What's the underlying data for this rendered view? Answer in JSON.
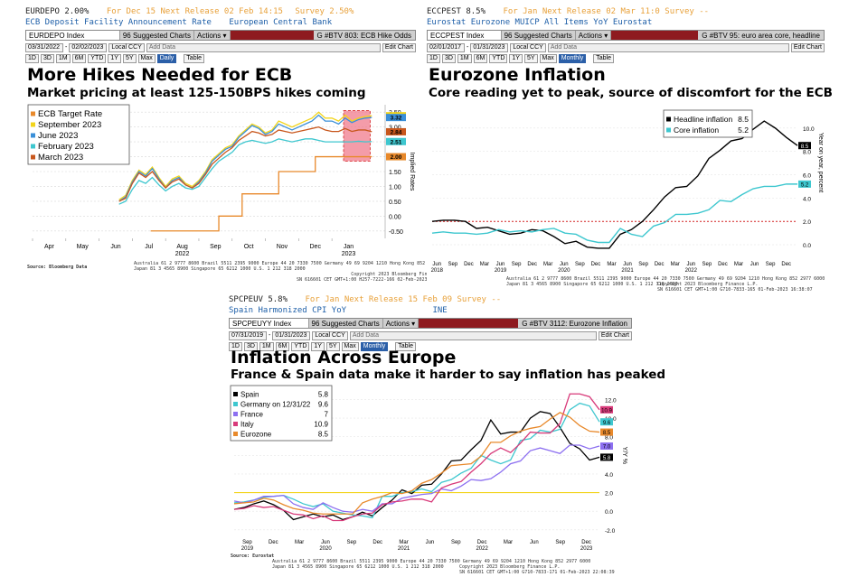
{
  "panels": [
    {
      "header1": {
        "ticker": "EURDEPO 2.00%",
        "period": "For Dec 15",
        "release": "Next Release 02 Feb 14:15",
        "survey": "Survey 2.50%"
      },
      "header2": {
        "desc": "ECB Deposit Facility Announcement Rate",
        "source": "European Central Bank"
      },
      "toolbar": {
        "index": "EURDEPO Index",
        "suggested": "Suggested Charts",
        "actions": "Actions",
        "title": "G #BTV 803: ECB Hike Odds"
      },
      "controls": {
        "start": "03/31/2022",
        "end": "02/02/2023",
        "ccy": "Local CCY",
        "periods": [
          "1D",
          "3D",
          "1M",
          "6M",
          "YTD",
          "1Y",
          "5Y",
          "Max"
        ],
        "freq": "Daily",
        "table": "Table",
        "add_data": "Add Data",
        "edit": "Edit Chart"
      },
      "title": "More Hikes Needed for ECB",
      "subtitle": "Market pricing at least 125-150BPS hikes coming",
      "source_note": "Source: Bloomberg Data",
      "footer": [
        "Australia 61 2 9777 8600 Brazil 5511 2395 9000 Europe 44 20 7330 7500 Germany 49 69 9204 1210 Hong Kong 852 2977 6000",
        "Japan 81 3 4565 8900        Singapore 65 6212 1000     U.S. 1 212 318 2000",
        "Copyright 2023 Bloomberg Finance L.P.",
        "SN 616601 CET  GMT+1:00 H257-7222-166 02-Feb-2023 09:15:43"
      ]
    },
    {
      "header1": {
        "ticker": "ECCPEST 8.5%",
        "period": "For Jan",
        "release": "Next Release 02 Mar 11:0",
        "survey": "Survey --"
      },
      "header2": {
        "desc": "Eurostat Eurozone MUICP All Items YoY  Eurostat",
        "source": ""
      },
      "toolbar": {
        "index": "ECCPEST Index",
        "suggested": "Suggested Charts",
        "actions": "Actions",
        "title": "G #BTV 95: euro area core, headline"
      },
      "controls": {
        "start": "02/01/2017",
        "end": "01/31/2023",
        "ccy": "Local CCY",
        "periods": [
          "1D",
          "3D",
          "1M",
          "6M",
          "YTD",
          "1Y",
          "5Y",
          "Max"
        ],
        "freq": "Monthly",
        "table": "Table",
        "add_data": "Add Data",
        "edit": "Edit Chart"
      },
      "title": "Eurozone Inflation",
      "subtitle": "Core reading yet to peak, source of discomfort for the ECB",
      "footer": [
        "Australia 61 2 9777 8600 Brazil 5511 2395 9000 Europe 44 20 7330 7500 Germany 49 69 9204 1210 Hong Kong 852 2977 6000",
        "Japan 81 3 4565 8900        Singapore 65 6212 1000     U.S. 1 212 318 2000",
        "Copyright 2023 Bloomberg Finance L.P.",
        "SN 616601 CET  GMT+1:00 G710-7833-165 01-Feb-2023 16:38:07"
      ]
    },
    {
      "header1": {
        "ticker": "SPCPEUV 5.8%",
        "period": "For Jan",
        "release": "Next Release 15 Feb 09",
        "survey": "Survey --"
      },
      "header2": {
        "desc": "Spain Harmonized CPI YoY",
        "source": "INE"
      },
      "toolbar": {
        "index": "SPCPEUYY Index",
        "suggested": "Suggested Charts",
        "actions": "Actions",
        "title": "G #BTV 3112: Eurozone Inflation"
      },
      "controls": {
        "start": "07/31/2019",
        "end": "01/31/2023",
        "ccy": "Local CCY",
        "periods": [
          "1D",
          "3D",
          "1M",
          "6M",
          "YTD",
          "1Y",
          "5Y",
          "Max"
        ],
        "freq": "Monthly",
        "table": "Table",
        "add_data": "Add Data",
        "edit": "Edit Chart"
      },
      "title": "Inflation Across Europe",
      "subtitle": "France & Spain data make it harder to say inflation has peaked",
      "source_note": "Source: Eurostat",
      "footer": [
        "Australia 61 2 9777 8600 Brazil 5511 2395 9000 Europe 44 20 7330 7500 Germany 49 69 9204 1210 Hong Kong 852 2977 6000",
        "Japan 81 3 4565 8900        Singapore 65 6212 1000     U.S. 1 212 318 2000",
        "Copyright 2023 Bloomberg Finance L.P.",
        "SN 616601 CET  GMT+1:00 G710-7833-171 01-Feb-2023 22:08:39"
      ]
    }
  ],
  "chart_data": [
    {
      "type": "line",
      "title": "More Hikes Needed for ECB",
      "ylabel": "Implied Rates",
      "ylim": [
        -0.75,
        3.75
      ],
      "yticks": [
        -0.5,
        0,
        0.5,
        1.0,
        1.5,
        2.0,
        2.5,
        3.0,
        3.5
      ],
      "x_labels": [
        "Apr",
        "May",
        "Jun",
        "Jul",
        "Aug",
        "Sep",
        "Oct",
        "Nov",
        "Dec",
        "Jan"
      ],
      "x_sub": {
        "Aug": "2022",
        "Jan": "2023"
      },
      "x": [
        2.6,
        2.8,
        3.0,
        3.2,
        3.4,
        3.6,
        3.8,
        4.0,
        4.2,
        4.4,
        4.6,
        4.8,
        5.0,
        5.2,
        5.4,
        5.6,
        5.8,
        6.0,
        6.2,
        6.4,
        6.6,
        6.8,
        7.0,
        7.2,
        7.4,
        7.6,
        7.8,
        8.0,
        8.2,
        8.4,
        8.6,
        8.8,
        9.0,
        9.2,
        9.4,
        9.6,
        9.8,
        10.0,
        10.2
      ],
      "series": [
        {
          "name": "ECB Target Rate",
          "color": "#e8892b",
          "step": true,
          "points": [
            [
              3.55,
              -0.5
            ],
            [
              5.6,
              -0.5
            ],
            [
              5.6,
              0.0
            ],
            [
              6.3,
              0.0
            ],
            [
              6.3,
              0.75
            ],
            [
              7.4,
              0.75
            ],
            [
              7.4,
              1.5
            ],
            [
              8.5,
              1.5
            ],
            [
              8.5,
              2.0
            ],
            [
              10.2,
              2.0
            ]
          ],
          "last": 2.0
        },
        {
          "name": "September 2023",
          "color": "#f2d41a",
          "values": [
            0.55,
            0.7,
            1.2,
            1.55,
            1.4,
            1.65,
            1.3,
            1.0,
            1.25,
            1.35,
            1.1,
            1.0,
            1.2,
            1.5,
            1.9,
            2.1,
            2.3,
            2.4,
            2.7,
            2.9,
            3.1,
            3.0,
            2.8,
            2.9,
            3.2,
            3.1,
            3.0,
            3.1,
            3.2,
            3.3,
            3.5,
            3.3,
            3.3,
            3.2,
            3.4,
            3.2,
            3.3,
            3.35,
            3.38
          ],
          "last": 3.38
        },
        {
          "name": "June 2023",
          "color": "#3a8fd8",
          "values": [
            0.5,
            0.65,
            1.15,
            1.5,
            1.35,
            1.6,
            1.25,
            0.95,
            1.2,
            1.3,
            1.05,
            0.95,
            1.15,
            1.45,
            1.85,
            2.05,
            2.25,
            2.35,
            2.65,
            2.85,
            3.05,
            2.95,
            2.75,
            2.85,
            3.1,
            3.0,
            2.9,
            3.0,
            3.1,
            3.2,
            3.4,
            3.2,
            3.2,
            3.1,
            3.3,
            3.15,
            3.25,
            3.3,
            3.32
          ],
          "last": 3.32
        },
        {
          "name": "February 2023",
          "color": "#3ec7cf",
          "values": [
            0.4,
            0.5,
            0.9,
            1.2,
            1.1,
            1.3,
            1.05,
            0.85,
            1.0,
            1.1,
            0.95,
            0.9,
            1.0,
            1.3,
            1.6,
            1.85,
            2.0,
            2.15,
            2.4,
            2.5,
            2.55,
            2.5,
            2.45,
            2.5,
            2.6,
            2.55,
            2.5,
            2.55,
            2.6,
            2.6,
            2.55,
            2.5,
            2.5,
            2.5,
            2.5,
            2.5,
            2.52,
            2.5,
            2.51
          ],
          "last": 2.51
        },
        {
          "name": "March 2023",
          "color": "#c8571d",
          "values": [
            0.5,
            0.6,
            1.1,
            1.45,
            1.3,
            1.5,
            1.2,
            0.95,
            1.15,
            1.25,
            1.05,
            0.95,
            1.1,
            1.4,
            1.75,
            1.95,
            2.15,
            2.3,
            2.55,
            2.7,
            2.85,
            2.8,
            2.7,
            2.75,
            2.9,
            2.85,
            2.8,
            2.85,
            2.9,
            2.95,
            3.0,
            2.9,
            2.85,
            2.85,
            2.95,
            2.85,
            2.9,
            2.9,
            2.84
          ],
          "last": 2.84
        }
      ],
      "highlight": {
        "x0": 9.35,
        "x1": 10.15,
        "y0": 1.85,
        "y1": 3.55,
        "color": "#f07b8c"
      }
    },
    {
      "type": "line",
      "title": "Eurozone Inflation",
      "ylabel": "Year on year, percent",
      "ylim": [
        -1.0,
        12.0
      ],
      "yticks": [
        0.0,
        2.0,
        4.0,
        6.0,
        8.0,
        10.0
      ],
      "x_labels": [
        "Jun",
        "Sep",
        "Dec",
        "Mar",
        "Jun",
        "Sep",
        "Dec",
        "Mar",
        "Jun",
        "Sep",
        "Dec",
        "Mar",
        "Jun",
        "Sep",
        "Dec",
        "Mar",
        "Jun",
        "Sep",
        "Dec",
        "Mar",
        "Jun",
        "Sep",
        "Dec"
      ],
      "x_sub": {
        "0": "2018",
        "4": "2019",
        "8": "2020",
        "12": "2021",
        "16": "2022"
      },
      "reference_line": {
        "y": 2.0,
        "color": "#d42020",
        "dashed": true
      },
      "series": [
        {
          "name": "Headline inflation",
          "color": "#000000",
          "last": 8.5,
          "values": [
            2.0,
            2.1,
            2.1,
            2.0,
            1.4,
            1.5,
            1.2,
            0.9,
            1.0,
            1.3,
            1.2,
            0.7,
            0.1,
            0.3,
            -0.2,
            -0.3,
            -0.3,
            0.9,
            1.3,
            2.0,
            3.0,
            4.1,
            4.9,
            5.0,
            5.9,
            7.4,
            8.1,
            8.9,
            9.1,
            9.9,
            10.6,
            10.0,
            9.2,
            8.5
          ]
        },
        {
          "name": "Core inflation",
          "color": "#3ec7cf",
          "last": 5.2,
          "values": [
            1.0,
            1.1,
            1.0,
            1.0,
            0.9,
            1.0,
            1.3,
            1.1,
            1.2,
            1.1,
            1.3,
            1.4,
            1.0,
            0.9,
            0.4,
            0.2,
            0.2,
            1.4,
            0.9,
            0.7,
            1.6,
            1.9,
            2.6,
            2.6,
            2.7,
            3.0,
            3.8,
            3.7,
            4.3,
            4.8,
            5.0,
            5.0,
            5.2,
            5.2
          ]
        }
      ]
    },
    {
      "type": "line",
      "title": "Inflation Across Europe",
      "ylabel": "Y/Y %",
      "ylim": [
        -2.6,
        13.5
      ],
      "yticks": [
        -2.0,
        0.0,
        2.0,
        4.0,
        6.0,
        8.0,
        10.0,
        12.0
      ],
      "x_labels": [
        "Sep",
        "Dec",
        "Mar",
        "Jun",
        "Sep",
        "Dec",
        "Mar",
        "Jun",
        "Sep",
        "Dec",
        "Mar",
        "Jun",
        "Sep",
        "Dec"
      ],
      "x_sub": {
        "0": "2019",
        "3": "2020",
        "6": "2021",
        "9": "2022",
        "13": "2023"
      },
      "reference_line": {
        "y": 2.0,
        "color": "#f2d41a",
        "dashed": false
      },
      "series": [
        {
          "name": "Spain",
          "color": "#000000",
          "last": 5.8,
          "values": [
            0.2,
            0.4,
            0.8,
            1.1,
            0.7,
            0.1,
            -0.9,
            -0.6,
            -0.3,
            -0.6,
            -0.4,
            -0.9,
            -0.6,
            -0.1,
            -0.5,
            0.4,
            1.2,
            2.3,
            1.9,
            2.8,
            2.9,
            4.0,
            5.4,
            5.5,
            6.6,
            7.6,
            9.8,
            8.3,
            8.5,
            8.5,
            10.0,
            10.7,
            10.5,
            9.0,
            7.3,
            6.7,
            5.5,
            5.8
          ]
        },
        {
          "name": "Germany on 12/31/22",
          "color": "#3ec7cf",
          "last": 9.6,
          "values": [
            0.9,
            1.0,
            1.2,
            1.5,
            1.6,
            1.7,
            1.3,
            0.8,
            0.5,
            0.8,
            0.0,
            -0.2,
            -0.4,
            -0.5,
            -0.7,
            1.6,
            1.6,
            2.0,
            2.1,
            2.4,
            2.1,
            3.1,
            3.4,
            4.1,
            4.6,
            6.0,
            5.5,
            5.1,
            5.5,
            7.6,
            7.8,
            8.7,
            8.5,
            8.8,
            10.9,
            11.6,
            11.3,
            9.6
          ]
        },
        {
          "name": "France",
          "color": "#8c6ff0",
          "last": 7.0,
          "values": [
            1.1,
            0.9,
            1.2,
            1.6,
            1.6,
            1.7,
            0.8,
            0.4,
            0.2,
            0.9,
            0.4,
            0.0,
            -0.1,
            0.2,
            0.0,
            0.8,
            0.8,
            1.4,
            1.6,
            1.8,
            1.9,
            2.4,
            2.2,
            2.7,
            3.4,
            3.3,
            3.5,
            4.2,
            5.1,
            5.4,
            6.5,
            6.8,
            6.5,
            6.2,
            7.1,
            7.1,
            6.7,
            7.0
          ]
        },
        {
          "name": "Italy",
          "color": "#d83a7a",
          "last": 10.9,
          "values": [
            0.2,
            0.3,
            0.6,
            0.4,
            0.5,
            0.1,
            -0.3,
            -0.4,
            -0.8,
            -0.5,
            -1.0,
            -1.0,
            -0.6,
            -0.3,
            -0.2,
            0.7,
            1.0,
            1.1,
            1.3,
            1.3,
            1.0,
            2.5,
            2.9,
            3.2,
            4.2,
            5.1,
            6.2,
            6.8,
            6.3,
            7.3,
            8.5,
            8.4,
            8.4,
            9.4,
            12.6,
            12.6,
            12.3,
            10.9
          ]
        },
        {
          "name": "Eurozone",
          "color": "#e8892b",
          "last": 8.5,
          "values": [
            0.8,
            0.9,
            1.0,
            1.4,
            1.2,
            0.7,
            0.3,
            0.1,
            -0.2,
            -0.3,
            -0.3,
            -0.3,
            -0.3,
            0.9,
            1.3,
            1.6,
            2.0,
            1.9,
            2.2,
            3.0,
            3.4,
            4.1,
            4.9,
            5.0,
            5.1,
            5.9,
            7.4,
            7.4,
            8.1,
            8.6,
            8.9,
            9.1,
            9.9,
            10.6,
            10.1,
            9.2,
            8.6,
            8.5
          ]
        }
      ]
    }
  ]
}
